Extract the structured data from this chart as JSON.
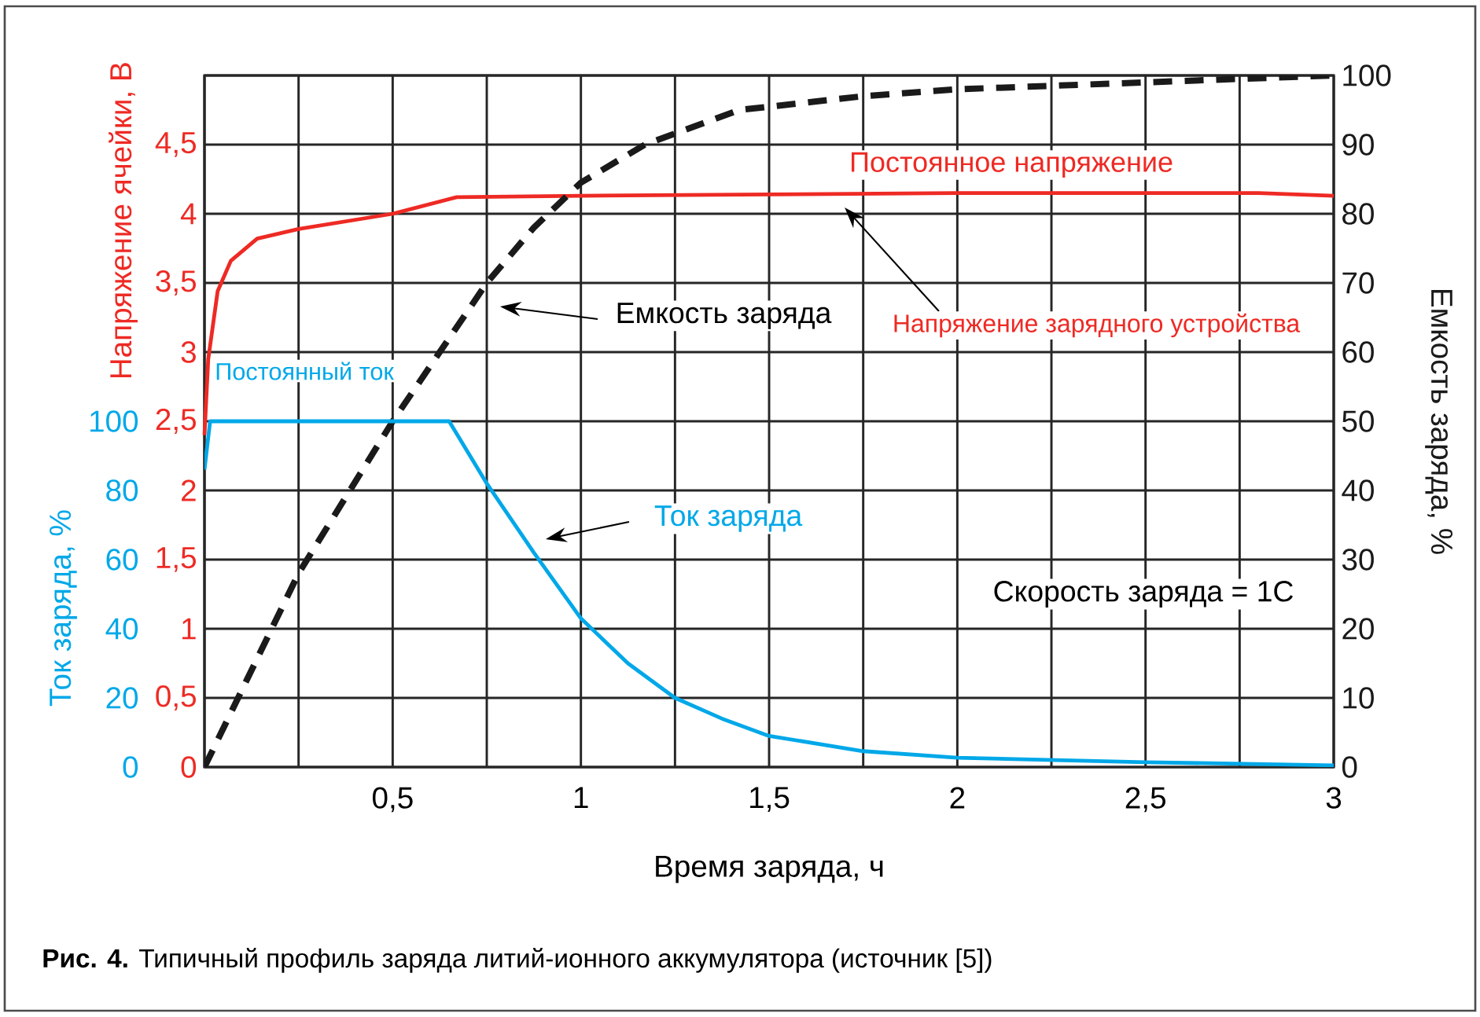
{
  "chart_data": {
    "type": "line",
    "xlabel": "Время заряда, ч",
    "ylabel": "Напряжение ячейки, В",
    "y2label": "Емкость заряда, %",
    "y3label": "Ток заряда, %",
    "xlim": [
      0,
      3
    ],
    "xticks": [
      {
        "value": 0,
        "label": null
      },
      {
        "value": 0.25,
        "label": null
      },
      {
        "value": 0.5,
        "label": "0,5"
      },
      {
        "value": 0.75,
        "label": null
      },
      1,
      {
        "value": 1.25,
        "label": null
      },
      {
        "value": 1.5,
        "label": "1,5"
      },
      {
        "value": 1.75,
        "label": null
      },
      2,
      {
        "value": 2.25,
        "label": null
      },
      {
        "value": 2.5,
        "label": "2,5"
      },
      {
        "value": 2.75,
        "label": null
      },
      3
    ],
    "ylim": [
      0,
      5
    ],
    "yticks": [
      0,
      {
        "value": 0.5,
        "label": "0,5"
      },
      1,
      {
        "value": 1.5,
        "label": "1,5"
      },
      2,
      {
        "value": 2.5,
        "label": "2,5"
      },
      3,
      {
        "value": 3.5,
        "label": "3,5"
      },
      4,
      {
        "value": 4.5,
        "label": "4,5"
      },
      {
        "value": 5,
        "label": null
      }
    ],
    "y2lim": [
      0,
      100
    ],
    "y2ticks": [
      0,
      10,
      20,
      30,
      40,
      50,
      60,
      70,
      80,
      90,
      100
    ],
    "y3lim": [
      0,
      200
    ],
    "y3ticks": [
      0,
      20,
      40,
      60,
      80,
      100
    ],
    "grid": true,
    "series": [
      {
        "axis": "y",
        "color": "#ee2a24",
        "x": [
          0,
          0.01,
          0.035,
          0.07,
          0.14,
          0.25,
          0.5,
          0.67,
          1,
          1.5,
          2,
          2.5,
          2.8,
          3
        ],
        "values": [
          2.4,
          2.95,
          3.44,
          3.66,
          3.82,
          3.89,
          4.0,
          4.12,
          4.13,
          4.14,
          4.15,
          4.15,
          4.15,
          4.13
        ]
      },
      {
        "axis": "y3",
        "color": "#00a8e8",
        "x": [
          0,
          0.015,
          0.65,
          0.75,
          0.875,
          1,
          1.125,
          1.25,
          1.375,
          1.5,
          1.75,
          2,
          2.5,
          3
        ],
        "values": [
          86,
          100,
          100,
          82,
          62,
          43,
          30,
          20,
          14,
          9,
          4.6,
          2.7,
          1.4,
          0.5
        ]
      },
      {
        "axis": "y2",
        "color": "#1a1a1a",
        "line_style": "dashed",
        "x": [
          0,
          0.25,
          0.5,
          0.75,
          0.875,
          1,
          1.17,
          1.42,
          1.75,
          2,
          2.5,
          3
        ],
        "values": [
          0,
          28,
          50,
          70,
          78,
          84.5,
          90,
          95,
          97,
          98,
          99,
          100
        ]
      }
    ],
    "annotations": [
      "Постоянное напряжение",
      "Напряжение зарядного устройства",
      "Емкость заряда",
      "Постоянный ток",
      "Ток заряда",
      "Скорость заряда = 1C",
      "**Рис. 4.** Типичный профиль заряда литий-ионного аккумулятора (источник [5])"
    ]
  }
}
